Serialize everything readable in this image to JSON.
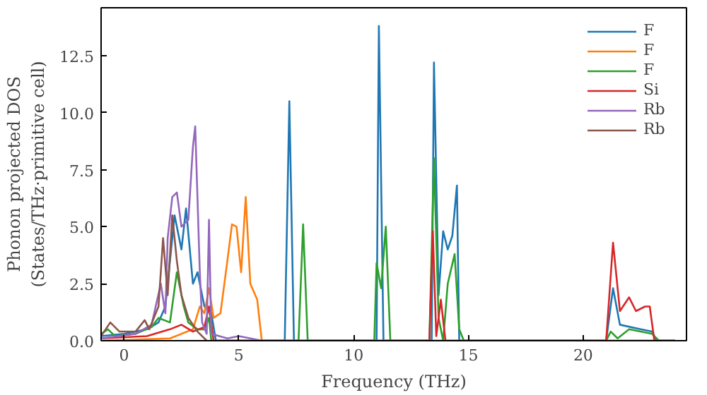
{
  "chart_data": {
    "type": "line",
    "xlabel": "Frequency (THz)",
    "ylabel": "Phonon projected DOS\n(States/THz·primitive cell)",
    "xlim": [
      -1,
      24.5
    ],
    "ylim": [
      0,
      14.6
    ],
    "xticks": [
      0,
      5,
      10,
      15,
      20
    ],
    "yticks": [
      {
        "value": 0,
        "label": "0.0"
      },
      2.5,
      {
        "value": 5,
        "label": "5.0"
      },
      7.5,
      {
        "value": 10,
        "label": "10.0"
      },
      12.5
    ],
    "grid": false,
    "legend": "top right",
    "marker": "none",
    "line_style": "solid",
    "series": [
      {
        "name": "F",
        "color": "#1f77b4",
        "x": [
          -1,
          0,
          1,
          1.5,
          1.8,
          2.2,
          2.5,
          2.7,
          3.0,
          3.2,
          3.5,
          3.8,
          4.0,
          7.0,
          7.2,
          7.4,
          11.0,
          11.1,
          11.3,
          13.4,
          13.5,
          13.7,
          13.9,
          14.1,
          14.3,
          14.5,
          14.6,
          21.0,
          21.3,
          21.6,
          22.5,
          23.0,
          23.2,
          24.0
        ],
        "values": [
          0.2,
          0.3,
          0.5,
          0.8,
          1.5,
          5.5,
          4.0,
          5.8,
          2.5,
          3.0,
          1.5,
          1.2,
          0,
          0,
          10.5,
          0,
          0,
          13.8,
          0,
          0,
          12.2,
          2.0,
          4.8,
          4.0,
          4.6,
          6.8,
          0,
          0,
          2.3,
          0.7,
          0.5,
          0.4,
          0,
          0
        ]
      },
      {
        "name": "F",
        "color": "#ff7f0e",
        "x": [
          -1,
          2.0,
          2.5,
          3.0,
          3.3,
          3.5,
          3.7,
          3.9,
          4.2,
          4.5,
          4.7,
          4.9,
          5.1,
          5.3,
          5.5,
          5.8,
          6.0,
          24.0
        ],
        "values": [
          0,
          0.1,
          0.3,
          0.5,
          1.5,
          1.2,
          2.3,
          1.0,
          1.2,
          3.5,
          5.1,
          5.0,
          3.0,
          6.3,
          2.5,
          1.8,
          0,
          0
        ]
      },
      {
        "name": "F",
        "color": "#2ca02c",
        "x": [
          -1,
          -0.7,
          -0.4,
          0.5,
          1.2,
          1.5,
          2.0,
          2.3,
          2.6,
          2.8,
          3.2,
          3.5,
          3.7,
          3.8,
          7.6,
          7.8,
          8.0,
          10.9,
          11.0,
          11.2,
          11.4,
          11.6,
          13.3,
          13.5,
          13.7,
          13.9,
          14.1,
          14.4,
          14.6,
          14.8,
          21.0,
          21.2,
          21.5,
          22.0,
          23.0,
          23.3,
          24.0
        ],
        "values": [
          0.3,
          0.5,
          0.2,
          0.3,
          0.6,
          1.0,
          0.8,
          3.0,
          1.5,
          0.8,
          0.5,
          0.5,
          1.0,
          0,
          0,
          5.1,
          0,
          0,
          3.4,
          2.3,
          5.0,
          0,
          0,
          8.0,
          1.0,
          0,
          2.5,
          3.8,
          0.5,
          0,
          0,
          0.4,
          0.1,
          0.5,
          0.3,
          0,
          0
        ]
      },
      {
        "name": "Si",
        "color": "#d62728",
        "x": [
          -1,
          1.0,
          2.0,
          2.5,
          3.0,
          3.5,
          3.7,
          3.9,
          13.3,
          13.45,
          13.6,
          13.8,
          14.0,
          21.0,
          21.3,
          21.6,
          22.0,
          22.3,
          22.7,
          22.9,
          23.1,
          24.0
        ],
        "values": [
          0.1,
          0.2,
          0.5,
          0.7,
          0.4,
          0.6,
          1.5,
          0,
          0,
          4.8,
          0.2,
          1.8,
          0,
          0,
          4.3,
          1.3,
          1.9,
          1.3,
          1.5,
          1.5,
          0,
          0
        ]
      },
      {
        "name": "Rb",
        "color": "#9467bd",
        "x": [
          -1,
          0.5,
          1.2,
          1.6,
          1.8,
          1.9,
          2.1,
          2.3,
          2.5,
          2.8,
          3.0,
          3.1,
          3.3,
          3.4,
          3.6,
          3.7,
          3.8,
          4.5,
          5.0,
          5.5,
          6.0,
          24.0
        ],
        "values": [
          0.1,
          0.3,
          0.7,
          2.5,
          1.2,
          4.5,
          6.3,
          6.5,
          5.0,
          5.3,
          8.5,
          9.4,
          3.0,
          0.8,
          0.3,
          5.3,
          0.3,
          0.1,
          0.2,
          0.1,
          0,
          0
        ]
      },
      {
        "name": "Rb",
        "color": "#8c564b",
        "x": [
          -1,
          -0.6,
          -0.2,
          0.5,
          0.9,
          1.1,
          1.5,
          1.7,
          1.9,
          2.1,
          2.3,
          2.5,
          2.8,
          3.2,
          3.6
        ],
        "values": [
          0.2,
          0.8,
          0.4,
          0.4,
          0.9,
          0.5,
          1.5,
          4.5,
          2.0,
          5.5,
          3.5,
          2.0,
          1.0,
          0.4,
          0
        ]
      }
    ]
  }
}
